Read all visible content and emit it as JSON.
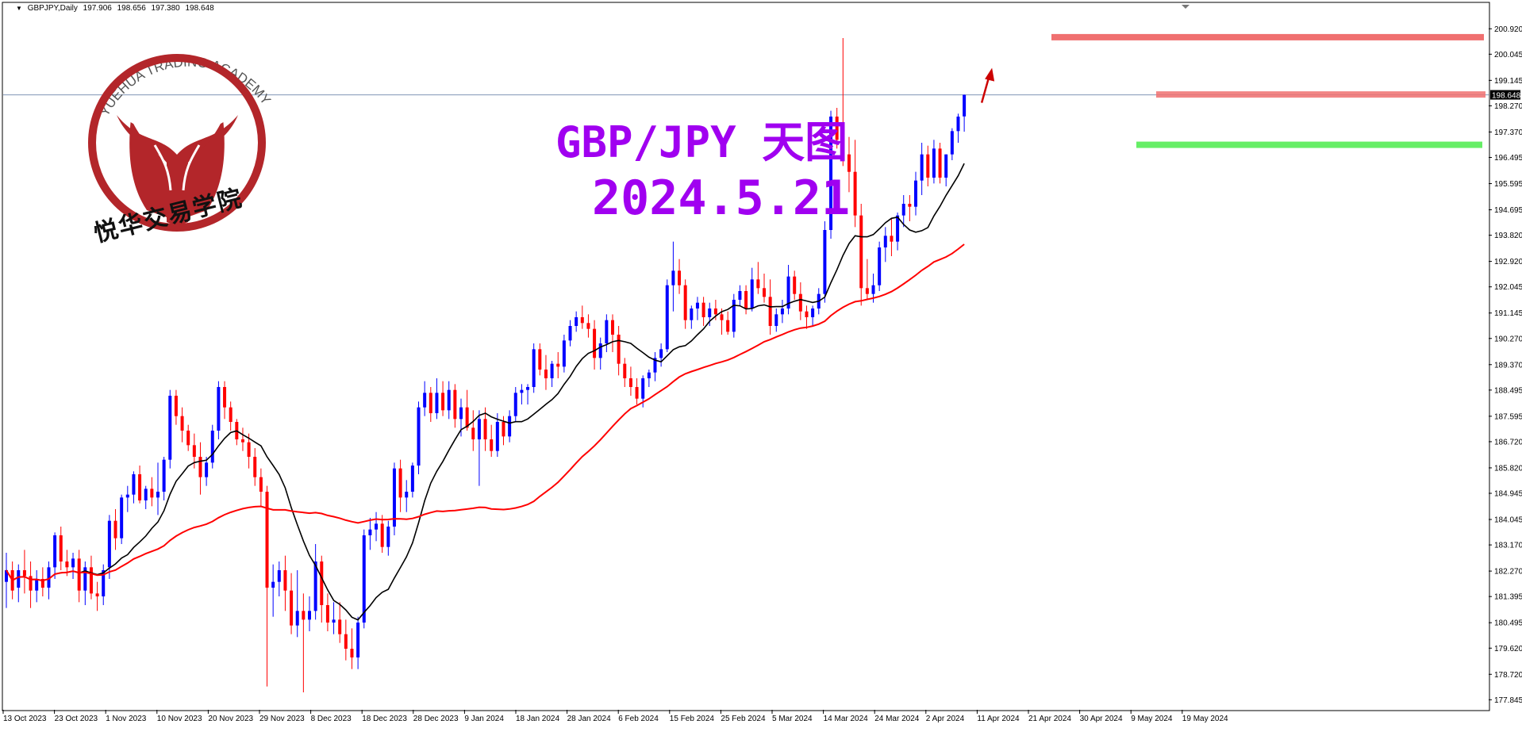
{
  "header": {
    "symbol": "GBPJPY,Daily",
    "open": "197.906",
    "high": "198.656",
    "low": "197.380",
    "close": "198.648"
  },
  "logo": {
    "ring_text": "YUEHUA TRADING ACADEMY",
    "cn_name": "悦华交易学院",
    "color": "#b3262a"
  },
  "overlay": {
    "title": "GBP/JPY 天图",
    "date": "2024.5.21",
    "color": "#a000f0"
  },
  "colors": {
    "bull": "#0000ff",
    "bear": "#ff0000",
    "ma_fast": "#000000",
    "ma_slow": "#ff0000",
    "resistance": "#f07070",
    "support": "#66ee66",
    "arrow": "#cc0000",
    "current_price_line": "#7f95b5"
  },
  "chart_data": {
    "type": "candlestick",
    "y_range": [
      177.5,
      201.8
    ],
    "y_ticks": [
      "200.920",
      "200.045",
      "199.145",
      "198.270",
      "197.370",
      "196.495",
      "195.595",
      "194.695",
      "193.820",
      "192.920",
      "192.045",
      "191.145",
      "190.270",
      "189.370",
      "188.495",
      "187.595",
      "186.720",
      "185.820",
      "184.945",
      "184.045",
      "183.170",
      "182.270",
      "181.395",
      "180.495",
      "179.620",
      "178.720",
      "177.845"
    ],
    "x_labels": [
      "13 Oct 2023",
      "23 Oct 2023",
      "1 Nov 2023",
      "10 Nov 2023",
      "20 Nov 2023",
      "29 Nov 2023",
      "8 Dec 2023",
      "18 Dec 2023",
      "28 Dec 2023",
      "9 Jan 2024",
      "18 Jan 2024",
      "28 Jan 2024",
      "6 Feb 2024",
      "15 Feb 2024",
      "25 Feb 2024",
      "5 Mar 2024",
      "14 Mar 2024",
      "24 Mar 2024",
      "2 Apr 2024",
      "11 Apr 2024",
      "21 Apr 2024",
      "30 Apr 2024",
      "9 May 2024",
      "19 May 2024"
    ],
    "current_price": "198.648",
    "current_price_value": 198.648,
    "resistance_levels": [
      200.63,
      198.66
    ],
    "support_levels": [
      196.93
    ],
    "candles": [
      [
        181.9,
        182.9,
        181.0,
        182.3
      ],
      [
        182.3,
        182.6,
        181.3,
        181.6
      ],
      [
        181.7,
        182.5,
        181.2,
        182.3
      ],
      [
        182.3,
        183.0,
        181.5,
        182.1
      ],
      [
        182.1,
        182.6,
        181.0,
        181.6
      ],
      [
        181.6,
        182.3,
        181.2,
        182.0
      ],
      [
        182.0,
        182.4,
        181.4,
        181.7
      ],
      [
        181.7,
        182.6,
        181.3,
        182.4
      ],
      [
        182.4,
        183.6,
        182.0,
        183.5
      ],
      [
        183.5,
        183.8,
        182.3,
        182.6
      ],
      [
        182.6,
        183.0,
        182.1,
        182.4
      ],
      [
        182.4,
        182.9,
        182.0,
        182.7
      ],
      [
        182.7,
        183.0,
        181.2,
        181.6
      ],
      [
        181.6,
        182.6,
        181.1,
        182.4
      ],
      [
        182.4,
        182.8,
        181.3,
        181.5
      ],
      [
        181.5,
        181.9,
        180.9,
        181.4
      ],
      [
        181.4,
        182.5,
        181.1,
        182.3
      ],
      [
        182.4,
        184.2,
        182.0,
        184.0
      ],
      [
        184.0,
        184.4,
        183.0,
        183.4
      ],
      [
        183.4,
        184.9,
        183.2,
        184.8
      ],
      [
        184.8,
        185.2,
        184.3,
        184.9
      ],
      [
        184.9,
        185.7,
        184.6,
        185.6
      ],
      [
        185.6,
        185.9,
        184.6,
        184.7
      ],
      [
        184.7,
        185.2,
        184.4,
        185.1
      ],
      [
        185.1,
        185.5,
        184.5,
        184.8
      ],
      [
        184.8,
        186.0,
        184.2,
        185.0
      ],
      [
        185.0,
        186.2,
        184.7,
        186.1
      ],
      [
        186.1,
        188.5,
        185.8,
        188.3
      ],
      [
        188.3,
        188.5,
        187.3,
        187.6
      ],
      [
        187.6,
        187.9,
        186.7,
        187.1
      ],
      [
        187.1,
        187.3,
        186.4,
        186.6
      ],
      [
        186.6,
        187.0,
        185.8,
        186.2
      ],
      [
        186.2,
        186.7,
        184.9,
        185.5
      ],
      [
        185.5,
        186.2,
        185.2,
        186.0
      ],
      [
        186.0,
        187.3,
        185.8,
        187.1
      ],
      [
        187.1,
        188.8,
        186.8,
        188.6
      ],
      [
        188.6,
        188.8,
        187.5,
        187.9
      ],
      [
        187.9,
        188.1,
        187.1,
        187.4
      ],
      [
        187.4,
        187.5,
        186.6,
        186.8
      ],
      [
        186.8,
        187.2,
        186.4,
        186.7
      ],
      [
        186.7,
        187.0,
        185.8,
        186.2
      ],
      [
        186.2,
        186.5,
        185.2,
        185.5
      ],
      [
        185.5,
        185.8,
        184.5,
        185.0
      ],
      [
        185.0,
        185.2,
        178.3,
        181.7
      ],
      [
        181.7,
        182.5,
        180.7,
        181.9
      ],
      [
        181.9,
        182.6,
        181.4,
        182.3
      ],
      [
        182.3,
        182.8,
        180.9,
        181.6
      ],
      [
        181.6,
        182.2,
        180.1,
        180.4
      ],
      [
        180.4,
        182.3,
        180.0,
        180.9
      ],
      [
        180.9,
        181.5,
        178.1,
        180.6
      ],
      [
        180.6,
        181.4,
        180.2,
        180.9
      ],
      [
        180.9,
        183.2,
        180.6,
        182.6
      ],
      [
        182.6,
        182.8,
        180.5,
        181.1
      ],
      [
        181.1,
        181.5,
        180.2,
        180.5
      ],
      [
        180.5,
        181.2,
        180.1,
        180.6
      ],
      [
        180.6,
        181.2,
        179.8,
        180.1
      ],
      [
        180.1,
        180.6,
        179.2,
        179.6
      ],
      [
        179.6,
        180.3,
        178.9,
        179.3
      ],
      [
        179.3,
        180.7,
        178.9,
        180.5
      ],
      [
        180.5,
        183.7,
        180.3,
        183.5
      ],
      [
        183.5,
        184.1,
        183.0,
        183.7
      ],
      [
        183.7,
        184.3,
        183.3,
        183.9
      ],
      [
        183.9,
        184.2,
        182.9,
        183.1
      ],
      [
        183.1,
        184.0,
        182.8,
        183.8
      ],
      [
        183.8,
        186.0,
        183.5,
        185.8
      ],
      [
        185.8,
        186.1,
        184.3,
        184.8
      ],
      [
        184.8,
        185.4,
        184.3,
        185.0
      ],
      [
        185.0,
        186.0,
        184.8,
        185.9
      ],
      [
        185.9,
        188.1,
        185.6,
        187.9
      ],
      [
        187.9,
        188.8,
        187.6,
        188.4
      ],
      [
        188.4,
        188.6,
        187.4,
        187.7
      ],
      [
        187.7,
        188.9,
        187.5,
        188.4
      ],
      [
        188.4,
        188.8,
        187.6,
        187.8
      ],
      [
        187.8,
        188.8,
        187.5,
        188.5
      ],
      [
        188.5,
        188.7,
        187.2,
        187.5
      ],
      [
        187.5,
        188.2,
        186.9,
        187.9
      ],
      [
        187.9,
        188.5,
        187.1,
        187.2
      ],
      [
        187.2,
        187.8,
        186.4,
        186.8
      ],
      [
        186.8,
        187.8,
        185.2,
        187.5
      ],
      [
        187.5,
        187.9,
        186.4,
        186.8
      ],
      [
        186.8,
        187.3,
        186.2,
        186.4
      ],
      [
        186.4,
        187.7,
        186.2,
        187.4
      ],
      [
        187.4,
        187.6,
        186.6,
        186.9
      ],
      [
        186.9,
        187.8,
        186.7,
        187.6
      ],
      [
        187.6,
        188.6,
        187.4,
        188.4
      ],
      [
        188.4,
        188.7,
        188.0,
        188.5
      ],
      [
        188.5,
        188.7,
        188.0,
        188.6
      ],
      [
        188.6,
        190.1,
        188.4,
        189.9
      ],
      [
        189.9,
        190.1,
        189.0,
        189.2
      ],
      [
        189.2,
        189.7,
        188.5,
        188.9
      ],
      [
        188.9,
        189.5,
        188.6,
        189.4
      ],
      [
        189.4,
        189.8,
        188.9,
        189.3
      ],
      [
        189.3,
        190.4,
        189.1,
        190.2
      ],
      [
        190.2,
        190.9,
        190.0,
        190.7
      ],
      [
        190.7,
        191.2,
        190.5,
        191.0
      ],
      [
        191.0,
        191.4,
        190.6,
        190.8
      ],
      [
        190.8,
        191.1,
        190.3,
        190.6
      ],
      [
        190.6,
        190.9,
        189.2,
        189.6
      ],
      [
        189.6,
        190.3,
        189.2,
        190.1
      ],
      [
        190.1,
        191.1,
        189.8,
        190.9
      ],
      [
        190.9,
        191.1,
        189.8,
        190.4
      ],
      [
        190.4,
        190.7,
        189.0,
        189.4
      ],
      [
        189.4,
        189.6,
        188.6,
        188.9
      ],
      [
        188.9,
        189.3,
        188.3,
        188.6
      ],
      [
        188.6,
        188.9,
        188.0,
        188.2
      ],
      [
        188.2,
        189.0,
        187.9,
        188.9
      ],
      [
        188.9,
        189.2,
        188.6,
        189.1
      ],
      [
        189.1,
        189.8,
        188.8,
        189.6
      ],
      [
        189.6,
        190.1,
        189.3,
        189.9
      ],
      [
        189.9,
        192.3,
        189.8,
        192.1
      ],
      [
        192.1,
        193.6,
        191.2,
        192.6
      ],
      [
        192.6,
        193.0,
        191.8,
        192.1
      ],
      [
        192.1,
        192.3,
        190.6,
        190.9
      ],
      [
        190.9,
        191.4,
        190.6,
        191.3
      ],
      [
        191.3,
        191.7,
        190.9,
        191.5
      ],
      [
        191.5,
        191.7,
        190.7,
        191.0
      ],
      [
        191.0,
        191.5,
        190.7,
        191.3
      ],
      [
        191.3,
        191.6,
        190.9,
        191.1
      ],
      [
        191.1,
        191.3,
        190.4,
        190.9
      ],
      [
        190.9,
        191.2,
        190.4,
        190.5
      ],
      [
        190.5,
        191.8,
        190.3,
        191.6
      ],
      [
        191.6,
        192.1,
        191.4,
        191.9
      ],
      [
        191.9,
        192.1,
        191.1,
        191.3
      ],
      [
        191.3,
        192.7,
        191.2,
        192.3
      ],
      [
        192.3,
        192.9,
        191.8,
        192.0
      ],
      [
        192.0,
        192.5,
        191.5,
        191.7
      ],
      [
        191.7,
        192.3,
        190.4,
        190.7
      ],
      [
        190.7,
        191.3,
        190.5,
        191.1
      ],
      [
        191.1,
        191.6,
        190.8,
        191.3
      ],
      [
        191.3,
        192.8,
        191.1,
        192.4
      ],
      [
        192.4,
        192.6,
        191.6,
        191.8
      ],
      [
        191.8,
        192.2,
        190.9,
        191.2
      ],
      [
        191.2,
        191.4,
        190.6,
        191.0
      ],
      [
        191.0,
        191.4,
        190.7,
        191.3
      ],
      [
        191.3,
        192.0,
        191.1,
        191.8
      ],
      [
        191.8,
        194.3,
        191.5,
        194.0
      ],
      [
        194.0,
        198.1,
        193.7,
        197.9
      ],
      [
        197.9,
        198.2,
        196.8,
        197.1
      ],
      [
        197.1,
        200.6,
        196.2,
        196.6
      ],
      [
        196.6,
        197.2,
        195.3,
        196.0
      ],
      [
        196.0,
        197.1,
        194.1,
        194.5
      ],
      [
        194.5,
        194.9,
        191.4,
        192.0
      ],
      [
        192.0,
        193.0,
        191.6,
        191.8
      ],
      [
        191.8,
        192.5,
        191.5,
        192.1
      ],
      [
        192.1,
        193.6,
        191.9,
        193.4
      ],
      [
        193.4,
        194.1,
        192.9,
        193.8
      ],
      [
        193.8,
        194.4,
        193.1,
        193.6
      ],
      [
        193.6,
        194.6,
        193.3,
        194.5
      ],
      [
        194.5,
        195.2,
        194.1,
        194.9
      ],
      [
        194.9,
        195.2,
        194.3,
        194.8
      ],
      [
        194.8,
        196.0,
        194.5,
        195.7
      ],
      [
        195.7,
        197.0,
        195.2,
        196.6
      ],
      [
        196.6,
        196.9,
        195.5,
        195.8
      ],
      [
        195.8,
        197.1,
        195.6,
        196.8
      ],
      [
        196.8,
        197.0,
        195.6,
        195.8
      ],
      [
        195.8,
        196.6,
        195.5,
        196.6
      ],
      [
        196.6,
        197.5,
        196.4,
        197.4
      ],
      [
        197.4,
        198.0,
        197.0,
        197.9
      ],
      [
        197.906,
        198.656,
        197.38,
        198.648
      ]
    ]
  }
}
